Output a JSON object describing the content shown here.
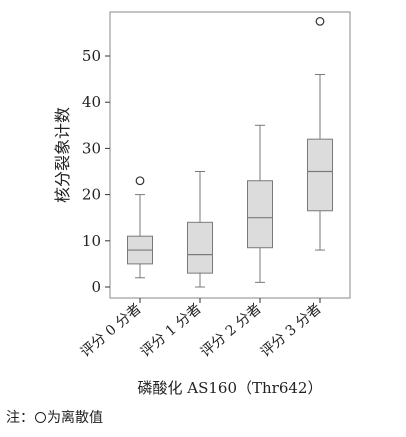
{
  "chart_data": {
    "type": "boxplot",
    "title": "",
    "xlabel": "磷酸化 AS160（Thr642）",
    "ylabel": "核分裂象计数",
    "ylim": [
      -2,
      59
    ],
    "yticks": [
      0,
      10,
      20,
      30,
      40,
      50
    ],
    "grid": false,
    "categories": [
      "评分 0 分者",
      "评分 1 分者",
      "评分 2 分者",
      "评分 3 分者"
    ],
    "boxes": [
      {
        "category": "评分 0 分者",
        "whisker_low": 2,
        "q1": 5,
        "median": 8,
        "q3": 11,
        "whisker_high": 20,
        "outliers": [
          23
        ]
      },
      {
        "category": "评分 1 分者",
        "whisker_low": 0,
        "q1": 3,
        "median": 7,
        "q3": 14,
        "whisker_high": 25,
        "outliers": []
      },
      {
        "category": "评分 2 分者",
        "whisker_low": 1,
        "q1": 8.5,
        "median": 15,
        "q3": 23,
        "whisker_high": 35,
        "outliers": []
      },
      {
        "category": "评分 3 分者",
        "whisker_low": 8,
        "q1": 16.5,
        "median": 25,
        "q3": 32,
        "whisker_high": 46,
        "outliers": [
          57.5
        ]
      }
    ],
    "colors": {
      "box_fill": "#dcdcdc",
      "box_stroke": "#7a7a7a",
      "axis": "#333333",
      "outlier": "#333333"
    }
  },
  "note": {
    "prefix": "注：",
    "text": "为离散值"
  }
}
